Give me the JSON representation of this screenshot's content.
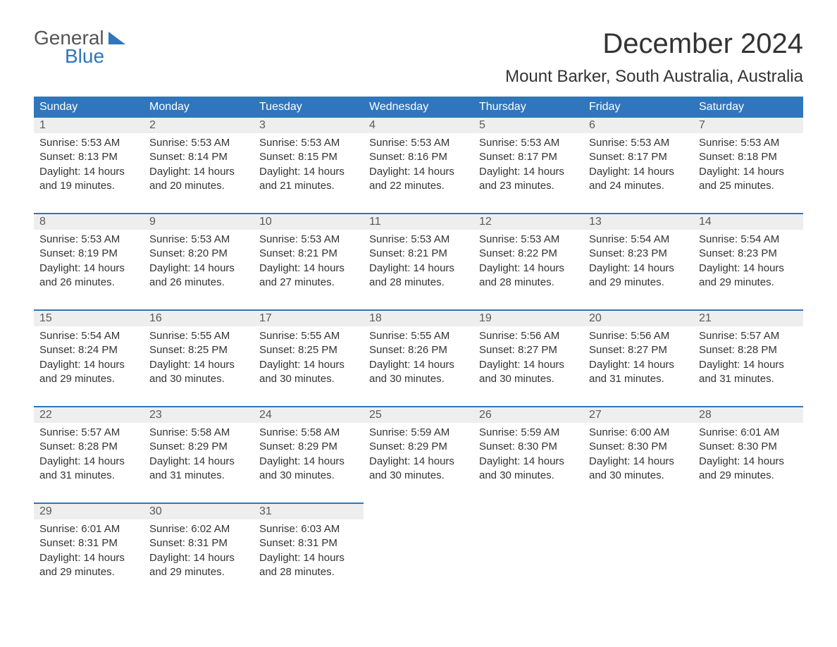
{
  "logo": {
    "top": "General",
    "bottom": "Blue"
  },
  "title": "December 2024",
  "location": "Mount Barker, South Australia, Australia",
  "header_bg": "#2f76bd",
  "header_fg": "#ffffff",
  "daynum_bg": "#eeeeee",
  "rule_color": "#2f76bd",
  "body_text_color": "#333333",
  "columns": [
    "Sunday",
    "Monday",
    "Tuesday",
    "Wednesday",
    "Thursday",
    "Friday",
    "Saturday"
  ],
  "weeks": [
    [
      {
        "n": "1",
        "sr": "Sunrise: 5:53 AM",
        "ss": "Sunset: 8:13 PM",
        "dl1": "Daylight: 14 hours",
        "dl2": "and 19 minutes."
      },
      {
        "n": "2",
        "sr": "Sunrise: 5:53 AM",
        "ss": "Sunset: 8:14 PM",
        "dl1": "Daylight: 14 hours",
        "dl2": "and 20 minutes."
      },
      {
        "n": "3",
        "sr": "Sunrise: 5:53 AM",
        "ss": "Sunset: 8:15 PM",
        "dl1": "Daylight: 14 hours",
        "dl2": "and 21 minutes."
      },
      {
        "n": "4",
        "sr": "Sunrise: 5:53 AM",
        "ss": "Sunset: 8:16 PM",
        "dl1": "Daylight: 14 hours",
        "dl2": "and 22 minutes."
      },
      {
        "n": "5",
        "sr": "Sunrise: 5:53 AM",
        "ss": "Sunset: 8:17 PM",
        "dl1": "Daylight: 14 hours",
        "dl2": "and 23 minutes."
      },
      {
        "n": "6",
        "sr": "Sunrise: 5:53 AM",
        "ss": "Sunset: 8:17 PM",
        "dl1": "Daylight: 14 hours",
        "dl2": "and 24 minutes."
      },
      {
        "n": "7",
        "sr": "Sunrise: 5:53 AM",
        "ss": "Sunset: 8:18 PM",
        "dl1": "Daylight: 14 hours",
        "dl2": "and 25 minutes."
      }
    ],
    [
      {
        "n": "8",
        "sr": "Sunrise: 5:53 AM",
        "ss": "Sunset: 8:19 PM",
        "dl1": "Daylight: 14 hours",
        "dl2": "and 26 minutes."
      },
      {
        "n": "9",
        "sr": "Sunrise: 5:53 AM",
        "ss": "Sunset: 8:20 PM",
        "dl1": "Daylight: 14 hours",
        "dl2": "and 26 minutes."
      },
      {
        "n": "10",
        "sr": "Sunrise: 5:53 AM",
        "ss": "Sunset: 8:21 PM",
        "dl1": "Daylight: 14 hours",
        "dl2": "and 27 minutes."
      },
      {
        "n": "11",
        "sr": "Sunrise: 5:53 AM",
        "ss": "Sunset: 8:21 PM",
        "dl1": "Daylight: 14 hours",
        "dl2": "and 28 minutes."
      },
      {
        "n": "12",
        "sr": "Sunrise: 5:53 AM",
        "ss": "Sunset: 8:22 PM",
        "dl1": "Daylight: 14 hours",
        "dl2": "and 28 minutes."
      },
      {
        "n": "13",
        "sr": "Sunrise: 5:54 AM",
        "ss": "Sunset: 8:23 PM",
        "dl1": "Daylight: 14 hours",
        "dl2": "and 29 minutes."
      },
      {
        "n": "14",
        "sr": "Sunrise: 5:54 AM",
        "ss": "Sunset: 8:23 PM",
        "dl1": "Daylight: 14 hours",
        "dl2": "and 29 minutes."
      }
    ],
    [
      {
        "n": "15",
        "sr": "Sunrise: 5:54 AM",
        "ss": "Sunset: 8:24 PM",
        "dl1": "Daylight: 14 hours",
        "dl2": "and 29 minutes."
      },
      {
        "n": "16",
        "sr": "Sunrise: 5:55 AM",
        "ss": "Sunset: 8:25 PM",
        "dl1": "Daylight: 14 hours",
        "dl2": "and 30 minutes."
      },
      {
        "n": "17",
        "sr": "Sunrise: 5:55 AM",
        "ss": "Sunset: 8:25 PM",
        "dl1": "Daylight: 14 hours",
        "dl2": "and 30 minutes."
      },
      {
        "n": "18",
        "sr": "Sunrise: 5:55 AM",
        "ss": "Sunset: 8:26 PM",
        "dl1": "Daylight: 14 hours",
        "dl2": "and 30 minutes."
      },
      {
        "n": "19",
        "sr": "Sunrise: 5:56 AM",
        "ss": "Sunset: 8:27 PM",
        "dl1": "Daylight: 14 hours",
        "dl2": "and 30 minutes."
      },
      {
        "n": "20",
        "sr": "Sunrise: 5:56 AM",
        "ss": "Sunset: 8:27 PM",
        "dl1": "Daylight: 14 hours",
        "dl2": "and 31 minutes."
      },
      {
        "n": "21",
        "sr": "Sunrise: 5:57 AM",
        "ss": "Sunset: 8:28 PM",
        "dl1": "Daylight: 14 hours",
        "dl2": "and 31 minutes."
      }
    ],
    [
      {
        "n": "22",
        "sr": "Sunrise: 5:57 AM",
        "ss": "Sunset: 8:28 PM",
        "dl1": "Daylight: 14 hours",
        "dl2": "and 31 minutes."
      },
      {
        "n": "23",
        "sr": "Sunrise: 5:58 AM",
        "ss": "Sunset: 8:29 PM",
        "dl1": "Daylight: 14 hours",
        "dl2": "and 31 minutes."
      },
      {
        "n": "24",
        "sr": "Sunrise: 5:58 AM",
        "ss": "Sunset: 8:29 PM",
        "dl1": "Daylight: 14 hours",
        "dl2": "and 30 minutes."
      },
      {
        "n": "25",
        "sr": "Sunrise: 5:59 AM",
        "ss": "Sunset: 8:29 PM",
        "dl1": "Daylight: 14 hours",
        "dl2": "and 30 minutes."
      },
      {
        "n": "26",
        "sr": "Sunrise: 5:59 AM",
        "ss": "Sunset: 8:30 PM",
        "dl1": "Daylight: 14 hours",
        "dl2": "and 30 minutes."
      },
      {
        "n": "27",
        "sr": "Sunrise: 6:00 AM",
        "ss": "Sunset: 8:30 PM",
        "dl1": "Daylight: 14 hours",
        "dl2": "and 30 minutes."
      },
      {
        "n": "28",
        "sr": "Sunrise: 6:01 AM",
        "ss": "Sunset: 8:30 PM",
        "dl1": "Daylight: 14 hours",
        "dl2": "and 29 minutes."
      }
    ],
    [
      {
        "n": "29",
        "sr": "Sunrise: 6:01 AM",
        "ss": "Sunset: 8:31 PM",
        "dl1": "Daylight: 14 hours",
        "dl2": "and 29 minutes."
      },
      {
        "n": "30",
        "sr": "Sunrise: 6:02 AM",
        "ss": "Sunset: 8:31 PM",
        "dl1": "Daylight: 14 hours",
        "dl2": "and 29 minutes."
      },
      {
        "n": "31",
        "sr": "Sunrise: 6:03 AM",
        "ss": "Sunset: 8:31 PM",
        "dl1": "Daylight: 14 hours",
        "dl2": "and 28 minutes."
      },
      null,
      null,
      null,
      null
    ]
  ]
}
